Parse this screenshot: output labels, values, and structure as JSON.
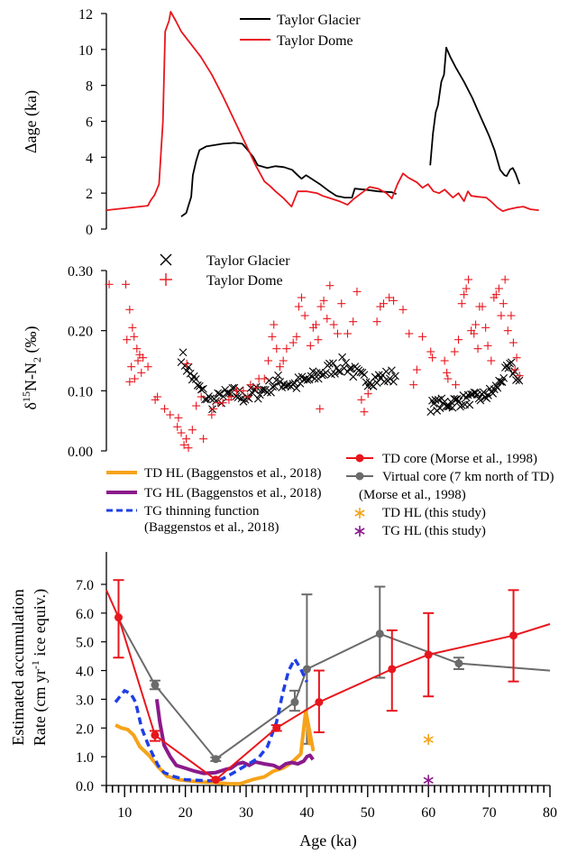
{
  "colors": {
    "black": "#000000",
    "red": "#e8161d",
    "orange": "#f6a31a",
    "purple": "#8b1a8b",
    "blue": "#1f3fe6",
    "gray": "#6b6b6b"
  },
  "chart_data": [
    {
      "id": "delta-age",
      "type": "line",
      "ylabel": "Δage (ka)",
      "ylim": [
        0,
        12
      ],
      "yticks": [
        "0",
        "2",
        "4",
        "6",
        "8",
        "10",
        "12"
      ],
      "xlim": [
        0,
        80
      ],
      "legend_position": "top-center",
      "series": [
        {
          "name": "Taylor Glacier",
          "color": "#000000",
          "segments": [
            [
              [
                13.5,
                0.7
              ],
              [
                14.4,
                0.9
              ],
              [
                14.8,
                1.3
              ],
              [
                15.3,
                1.8
              ],
              [
                15.6,
                3.0
              ],
              [
                16.2,
                3.8
              ],
              [
                16.8,
                4.4
              ],
              [
                18,
                4.6
              ],
              [
                21,
                4.75
              ],
              [
                23,
                4.8
              ],
              [
                24.5,
                4.75
              ],
              [
                25.5,
                4.4
              ],
              [
                26.5,
                4.0
              ],
              [
                27.3,
                3.55
              ],
              [
                29,
                3.4
              ],
              [
                30.5,
                3.5
              ],
              [
                32,
                3.45
              ],
              [
                33.5,
                3.3
              ],
              [
                34.5,
                3.0
              ],
              [
                35.2,
                2.8
              ],
              [
                36,
                3.0
              ],
              [
                37,
                2.8
              ],
              [
                38.5,
                2.5
              ],
              [
                40,
                2.15
              ],
              [
                41.5,
                1.85
              ],
              [
                43,
                1.75
              ],
              [
                44.3,
                1.75
              ],
              [
                44.8,
                2.25
              ],
              [
                46.5,
                2.2
              ],
              [
                49,
                2.1
              ],
              [
                51.5,
                2.05
              ],
              [
                52.3,
                1.95
              ]
            ],
            [
              [
                58.4,
                3.55
              ],
              [
                58.9,
                5.3
              ],
              [
                59.4,
                6.5
              ],
              [
                59.8,
                6.9
              ],
              [
                60.4,
                8.2
              ],
              [
                60.9,
                8.6
              ],
              [
                61.3,
                10.1
              ],
              [
                62,
                9.6
              ],
              [
                63,
                9.0
              ],
              [
                64.5,
                8.2
              ],
              [
                66,
                7.3
              ],
              [
                67,
                6.6
              ],
              [
                68,
                5.9
              ],
              [
                69,
                5.2
              ],
              [
                70,
                4.4
              ],
              [
                71,
                3.3
              ],
              [
                71.8,
                3.0
              ],
              [
                72.2,
                2.95
              ],
              [
                72.8,
                3.3
              ],
              [
                73.3,
                3.4
              ],
              [
                73.8,
                3.1
              ],
              [
                74.5,
                2.5
              ]
            ]
          ]
        },
        {
          "name": "Taylor Dome",
          "color": "#e8161d",
          "segments": [
            [
              [
                0,
                1.05
              ],
              [
                7.5,
                1.3
              ],
              [
                8,
                1.6
              ],
              [
                8.7,
                1.9
              ],
              [
                9.5,
                2.5
              ],
              [
                10.2,
                6.0
              ],
              [
                10.6,
                11.0
              ],
              [
                11.3,
                11.6
              ],
              [
                11.6,
                12.1
              ],
              [
                12.5,
                11.6
              ],
              [
                13.5,
                11.0
              ],
              [
                15,
                10.4
              ],
              [
                17,
                9.6
              ],
              [
                19,
                8.6
              ],
              [
                21,
                7.4
              ],
              [
                23,
                6.1
              ],
              [
                25,
                4.8
              ],
              [
                27,
                3.5
              ],
              [
                28.5,
                2.65
              ],
              [
                29.5,
                2.4
              ],
              [
                30.5,
                2.1
              ],
              [
                32,
                1.7
              ],
              [
                33.4,
                1.25
              ],
              [
                34.5,
                2.1
              ],
              [
                36.2,
                2.1
              ],
              [
                38,
                2.0
              ],
              [
                39,
                1.85
              ],
              [
                40.5,
                1.7
              ],
              [
                42,
                1.55
              ],
              [
                43.5,
                1.35
              ],
              [
                44.5,
                1.65
              ],
              [
                46,
                2.0
              ],
              [
                47.5,
                2.35
              ],
              [
                49,
                2.25
              ],
              [
                50.5,
                2.0
              ],
              [
                51.5,
                1.7
              ],
              [
                52.5,
                2.5
              ],
              [
                53.5,
                3.1
              ],
              [
                54.5,
                2.85
              ],
              [
                56,
                2.6
              ],
              [
                57,
                2.3
              ],
              [
                58,
                2.5
              ],
              [
                59,
                2.1
              ],
              [
                60,
                2.0
              ],
              [
                61,
                2.2
              ],
              [
                62.5,
                1.75
              ],
              [
                63.5,
                2.0
              ],
              [
                64.5,
                1.55
              ],
              [
                65.2,
                2.1
              ],
              [
                65.8,
                1.85
              ],
              [
                67,
                1.8
              ],
              [
                68.5,
                1.75
              ],
              [
                69.5,
                1.5
              ],
              [
                70.5,
                1.2
              ],
              [
                71.5,
                1.0
              ],
              [
                72.5,
                1.1
              ],
              [
                74,
                1.2
              ],
              [
                75.2,
                1.25
              ],
              [
                76.5,
                1.1
              ],
              [
                78,
                1.05
              ]
            ]
          ]
        }
      ]
    },
    {
      "id": "d15n",
      "type": "scatter",
      "ylabel": "δ15N-N2 (‰)",
      "ylim": [
        0,
        0.3
      ],
      "yticks": [
        "0.00",
        "0.10",
        "0.20",
        "0.30"
      ],
      "xlim": [
        0,
        80
      ],
      "legend_position": "top-left",
      "series": [
        {
          "name": "Taylor Glacier",
          "marker": "x",
          "color": "#000000"
        },
        {
          "name": "Taylor Dome",
          "marker": "+",
          "color": "#e8161d"
        }
      ]
    },
    {
      "id": "accumulation",
      "type": "line",
      "ylabel": "Estimated accumulation",
      "ylabel_line2": "Rate (cm yr-1 ice equiv.)",
      "xlabel": "Age (ka)",
      "ylim": [
        0,
        7
      ],
      "yticks": [
        "0.0",
        "1.0",
        "2.0",
        "3.0",
        "4.0",
        "5.0",
        "6.0",
        "7.0"
      ],
      "xlim": [
        7,
        80
      ],
      "xticks": [
        "10",
        "20",
        "30",
        "40",
        "50",
        "60",
        "70",
        "80"
      ],
      "series": [
        {
          "name": "TD core (Morse et al., 1998)",
          "color": "#e8161d",
          "style": "line-marker",
          "line": [
            [
              7,
              6.8
            ],
            [
              9,
              5.85
            ],
            [
              15,
              1.75
            ],
            [
              25,
              0.2
            ],
            [
              35,
              2.0
            ],
            [
              42,
              2.9
            ],
            [
              54,
              4.05
            ],
            [
              60,
              4.55
            ],
            [
              74,
              5.22
            ],
            [
              80,
              5.62
            ]
          ],
          "points": [
            [
              9,
              5.85,
              4.45,
              7.15
            ],
            [
              15,
              1.75,
              1.55,
              1.9
            ],
            [
              25,
              0.2,
              0.2,
              0.2
            ],
            [
              35,
              2.0,
              1.9,
              2.1
            ],
            [
              42,
              2.9,
              1.85,
              4.0
            ],
            [
              54,
              4.05,
              2.6,
              5.4
            ],
            [
              60,
              4.55,
              3.1,
              6.0
            ],
            [
              74,
              5.22,
              3.62,
              6.8
            ]
          ]
        },
        {
          "name": "Virtual core (7 km north of TD) (Morse et al., 1998)",
          "color": "#6b6b6b",
          "style": "line-marker",
          "line": [
            [
              9,
              5.8
            ],
            [
              15,
              3.5
            ],
            [
              25,
              0.92
            ],
            [
              38,
              2.9
            ],
            [
              40,
              4.05
            ],
            [
              52,
              5.28
            ],
            [
              65,
              4.25
            ],
            [
              80,
              4.0
            ]
          ],
          "points": [
            [
              15,
              3.5,
              3.35,
              3.65
            ],
            [
              25,
              0.92,
              0.85,
              0.98
            ],
            [
              38,
              2.9,
              2.6,
              3.3
            ],
            [
              40,
              4.05,
              1.45,
              6.65
            ],
            [
              52,
              5.28,
              3.75,
              6.92
            ],
            [
              65,
              4.25,
              4.05,
              4.45
            ]
          ]
        },
        {
          "name": "TD HL (Baggenstos et al., 2018)",
          "color": "#f6a31a",
          "style": "thick",
          "line": [
            [
              8.5,
              2.1
            ],
            [
              9.5,
              2.0
            ],
            [
              10.5,
              1.95
            ],
            [
              11.5,
              1.75
            ],
            [
              12.5,
              1.35
            ],
            [
              14,
              1.05
            ],
            [
              15.5,
              0.65
            ],
            [
              17,
              0.32
            ],
            [
              19,
              0.2
            ],
            [
              21,
              0.15
            ],
            [
              23,
              0.12
            ],
            [
              25,
              0.1
            ],
            [
              27,
              0.06
            ],
            [
              29,
              0.06
            ],
            [
              31,
              0.2
            ],
            [
              33,
              0.3
            ],
            [
              34.5,
              0.5
            ],
            [
              36,
              0.6
            ],
            [
              37.5,
              0.8
            ],
            [
              39,
              1.1
            ],
            [
              39.8,
              2.6
            ],
            [
              41,
              1.25
            ],
            [
              39.8,
              2.6
            ],
            [
              40.5,
              1.4
            ]
          ]
        },
        {
          "name": "TG HL (Baggenstos et al., 2018)",
          "color": "#8b1a8b",
          "style": "thick",
          "line": [
            [
              15.3,
              3.0
            ],
            [
              15.8,
              2.2
            ],
            [
              16.5,
              1.4
            ],
            [
              17.5,
              1.0
            ],
            [
              18.5,
              0.7
            ],
            [
              20,
              0.6
            ],
            [
              21.5,
              0.5
            ],
            [
              23,
              0.42
            ],
            [
              25,
              0.45
            ],
            [
              26.5,
              0.55
            ],
            [
              27.5,
              0.6
            ],
            [
              28.5,
              0.75
            ],
            [
              29.5,
              0.8
            ],
            [
              30.5,
              0.7
            ],
            [
              31.5,
              0.82
            ],
            [
              33,
              0.75
            ],
            [
              34.5,
              0.7
            ],
            [
              35.5,
              0.6
            ],
            [
              36.5,
              0.75
            ],
            [
              37.5,
              0.8
            ],
            [
              38.5,
              0.75
            ],
            [
              39.5,
              0.85
            ],
            [
              40,
              1.0
            ],
            [
              40.5,
              1.05
            ],
            [
              41,
              0.9
            ]
          ]
        },
        {
          "name": "TG thinning function (Baggenstos et al., 2018)",
          "color": "#1f3fe6",
          "style": "dashed",
          "line": [
            [
              8.5,
              2.9
            ],
            [
              10,
              3.3
            ],
            [
              11,
              3.2
            ],
            [
              11.8,
              2.9
            ],
            [
              12.8,
              2.0
            ],
            [
              14,
              1.35
            ],
            [
              15.5,
              0.7
            ],
            [
              16.5,
              0.45
            ],
            [
              18,
              0.32
            ],
            [
              20,
              0.2
            ],
            [
              22,
              0.18
            ],
            [
              24,
              0.16
            ],
            [
              26,
              0.22
            ],
            [
              28,
              0.45
            ],
            [
              30,
              0.7
            ],
            [
              32,
              0.95
            ],
            [
              33.5,
              1.35
            ],
            [
              35,
              2.2
            ],
            [
              36,
              3.2
            ],
            [
              37,
              4.0
            ],
            [
              38,
              4.4
            ],
            [
              39,
              4.05
            ],
            [
              40,
              3.6
            ]
          ]
        },
        {
          "name": "TD HL (this study)",
          "color": "#f6a31a",
          "style": "asterisk",
          "points": [
            [
              60,
              1.6
            ]
          ]
        },
        {
          "name": "TG HL (this study)",
          "color": "#8b1a8b",
          "style": "asterisk",
          "points": [
            [
              60,
              0.18
            ]
          ]
        }
      ]
    }
  ]
}
